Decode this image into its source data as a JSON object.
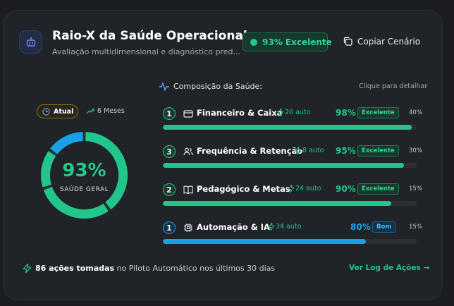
{
  "header": {
    "icon": "robot-icon",
    "title": "Raio-X da Saúde Operacional",
    "subtitle": "Avaliação multidimensional e diagnóstico pred...",
    "score_badge": "93% Excelente",
    "copy_label": "Copiar Cenário"
  },
  "composition": {
    "title": "Composição da Saúde:",
    "hint": "Clique para detalhar",
    "rows": [
      {
        "rank": "1",
        "icon": "wallet-icon",
        "name": "Financeiro & Caixa",
        "auto": "20 auto",
        "percent": "98%",
        "percent_value": 98,
        "status": "Excelente",
        "weight": "40%",
        "color": "#22c58b"
      },
      {
        "rank": "3",
        "icon": "users-icon",
        "name": "Frequência & Retenção",
        "auto": "8 auto",
        "percent": "95%",
        "percent_value": 95,
        "status": "Excelente",
        "weight": "30%",
        "color": "#22c58b"
      },
      {
        "rank": "2",
        "icon": "book-icon",
        "name": "Pedagógico & Metas",
        "auto": "24 auto",
        "percent": "90%",
        "percent_value": 90,
        "status": "Excelente",
        "weight": "15%",
        "color": "#22c58b"
      },
      {
        "rank": "1",
        "icon": "chip-icon",
        "name": "Automação & IA",
        "auto": "34 auto",
        "percent": "80%",
        "percent_value": 80,
        "status": "Bom",
        "weight": "15%",
        "color": "#1aa0e6"
      }
    ]
  },
  "gauge": {
    "toggle_active": "Atual",
    "toggle_other": "6 Meses",
    "percent": "93%",
    "label": "SAÚDE GERAL",
    "segments": [
      {
        "value": 40,
        "color": "#22c58b"
      },
      {
        "value": 30,
        "color": "#22c58b"
      },
      {
        "value": 15,
        "color": "#22c58b"
      },
      {
        "value": 15,
        "color": "#1aa0e6"
      }
    ]
  },
  "footer": {
    "actions_count": "86 ações tomadas",
    "actions_text": "no Piloto Automático nos últimos 30 dias",
    "log_link": "Ver Log de Ações →"
  },
  "colors": {
    "green": "#22c58b",
    "blue": "#1aa0e6",
    "card": "#202327"
  }
}
